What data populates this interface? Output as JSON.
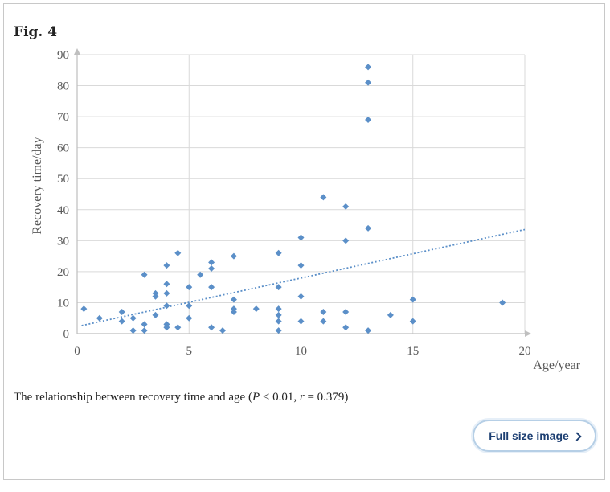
{
  "figure": {
    "label": "Fig. 4"
  },
  "caption": {
    "prefix": "The relationship between recovery time and age (",
    "p_symbol": "P",
    "p_rest": " < 0.01, ",
    "r_symbol": "r",
    "r_rest": " = 0.379)"
  },
  "button": {
    "label": "Full size image",
    "icon": "chevron-right-icon"
  },
  "chart_data": {
    "type": "scatter",
    "title": "",
    "xlabel": "Age/year",
    "ylabel": "Recovery time/day",
    "xlim": [
      0,
      20
    ],
    "ylim": [
      0,
      90
    ],
    "xticks": [
      0,
      5,
      10,
      15,
      20
    ],
    "yticks": [
      0,
      10,
      20,
      30,
      40,
      50,
      60,
      70,
      80,
      90
    ],
    "grid": true,
    "legend": "none",
    "marker_color": "#5b8fc8",
    "trendline": {
      "style": "dotted",
      "color": "#5b8fc8",
      "points": [
        [
          0.2,
          2.6
        ],
        [
          20,
          33.6
        ]
      ]
    },
    "points": [
      [
        0.3,
        8
      ],
      [
        1,
        5
      ],
      [
        2,
        7
      ],
      [
        2,
        4
      ],
      [
        2.5,
        5
      ],
      [
        2.5,
        1
      ],
      [
        3,
        19
      ],
      [
        3,
        3
      ],
      [
        3,
        1
      ],
      [
        3.5,
        13
      ],
      [
        3.5,
        12
      ],
      [
        3.5,
        6
      ],
      [
        4,
        22
      ],
      [
        4,
        16
      ],
      [
        4,
        13
      ],
      [
        4,
        9
      ],
      [
        4,
        3
      ],
      [
        4,
        2
      ],
      [
        4.5,
        26
      ],
      [
        4.5,
        2
      ],
      [
        5,
        15
      ],
      [
        5,
        9
      ],
      [
        5,
        5
      ],
      [
        5.5,
        19
      ],
      [
        6,
        23
      ],
      [
        6,
        21
      ],
      [
        6,
        15
      ],
      [
        6,
        2
      ],
      [
        6.5,
        1
      ],
      [
        7,
        25
      ],
      [
        7,
        11
      ],
      [
        7,
        8
      ],
      [
        7,
        7
      ],
      [
        8,
        8
      ],
      [
        9,
        26
      ],
      [
        9,
        15
      ],
      [
        9,
        8
      ],
      [
        9,
        6
      ],
      [
        9,
        4
      ],
      [
        9,
        1
      ],
      [
        10,
        31
      ],
      [
        10,
        22
      ],
      [
        10,
        12
      ],
      [
        10,
        4
      ],
      [
        11,
        44
      ],
      [
        11,
        7
      ],
      [
        11,
        4
      ],
      [
        12,
        41
      ],
      [
        12,
        30
      ],
      [
        12,
        7
      ],
      [
        12,
        2
      ],
      [
        13,
        86
      ],
      [
        13,
        81
      ],
      [
        13,
        69
      ],
      [
        13,
        34
      ],
      [
        13,
        1
      ],
      [
        14,
        6
      ],
      [
        15,
        11
      ],
      [
        15,
        4
      ],
      [
        19,
        10
      ]
    ]
  }
}
